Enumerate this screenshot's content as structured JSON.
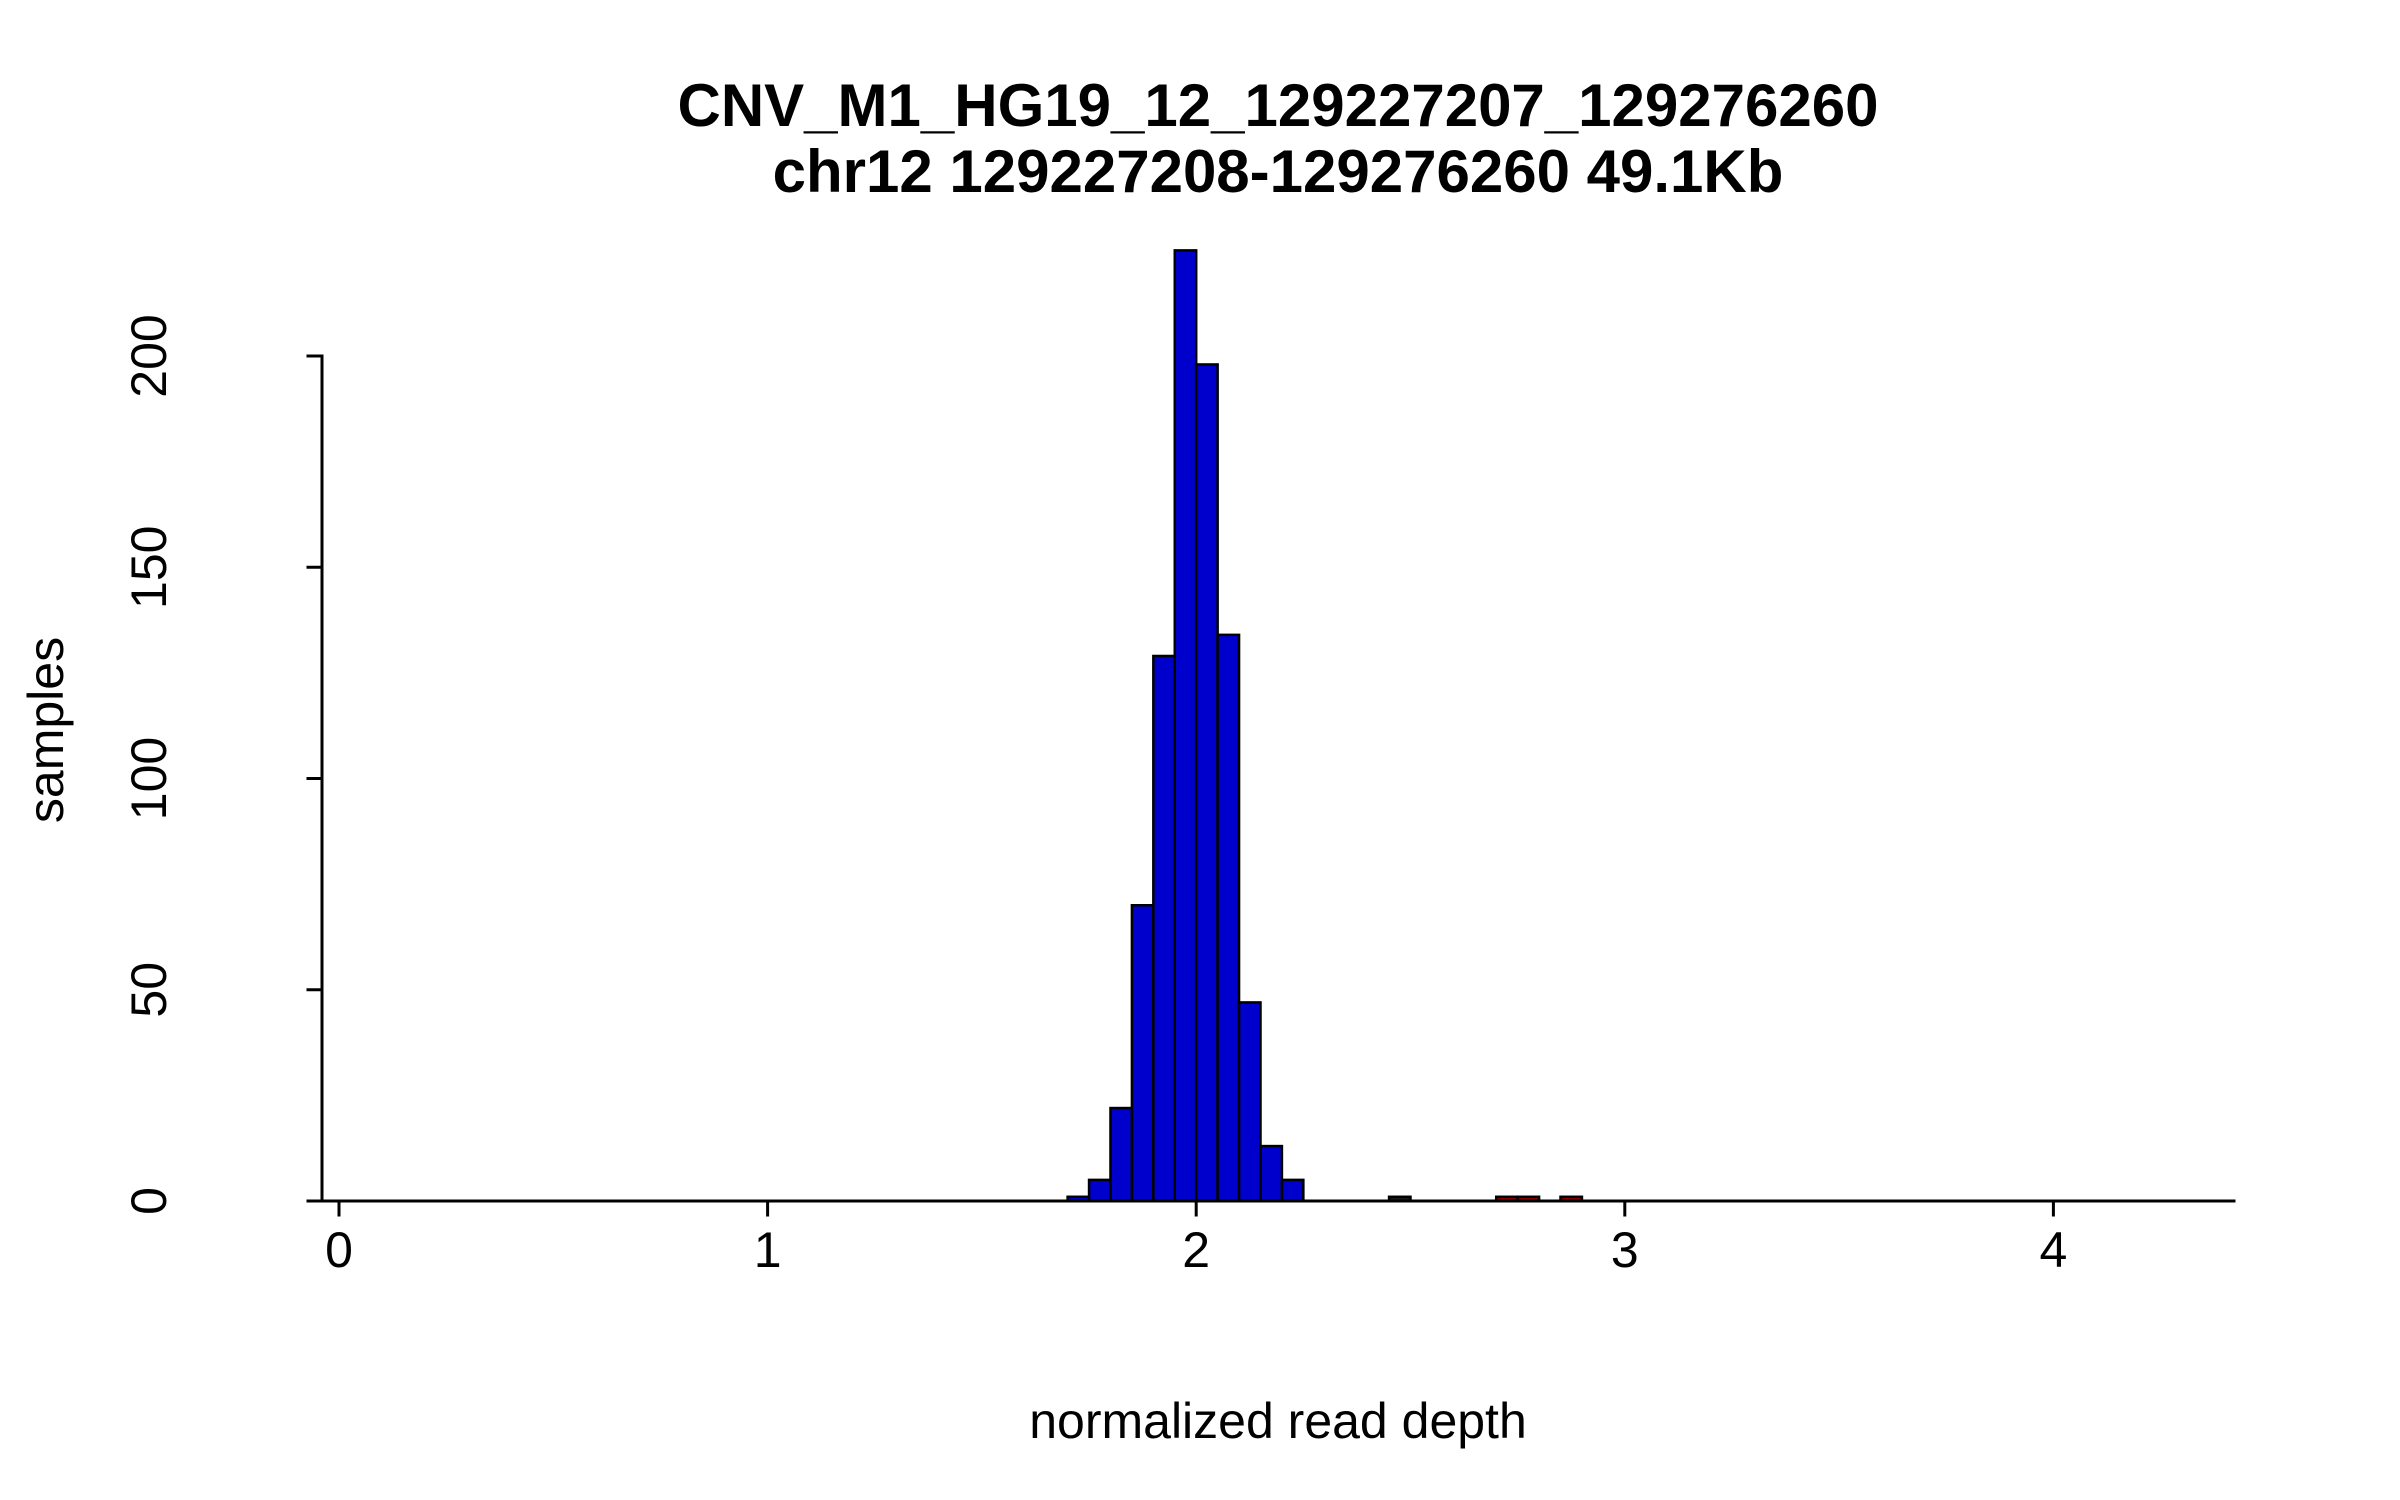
{
  "chart_data": {
    "type": "bar",
    "subtype": "histogram",
    "title": "CNV_M1_HG19_12_129227207_129276260",
    "subtitle": "chr12 129227208-129276260 49.1Kb",
    "xlabel": "normalized read depth",
    "ylabel": "samples",
    "xlim": [
      -0.05,
      4.42
    ],
    "ylim": [
      0,
      225
    ],
    "x_ticks": [
      0,
      1,
      2,
      3,
      4
    ],
    "y_ticks": [
      0,
      50,
      100,
      150,
      200
    ],
    "grid": "off",
    "legend": "none",
    "bin_width": 0.05,
    "bar_fill": "#0000CD",
    "bar_stroke": "#000000",
    "outlier_color": "#8B0000",
    "bars": [
      {
        "x0": 1.7,
        "count": 1
      },
      {
        "x0": 1.75,
        "count": 5
      },
      {
        "x0": 1.8,
        "count": 22
      },
      {
        "x0": 1.85,
        "count": 70
      },
      {
        "x0": 1.9,
        "count": 129
      },
      {
        "x0": 1.95,
        "count": 225
      },
      {
        "x0": 2.0,
        "count": 198
      },
      {
        "x0": 2.05,
        "count": 134
      },
      {
        "x0": 2.1,
        "count": 47
      },
      {
        "x0": 2.15,
        "count": 13
      },
      {
        "x0": 2.2,
        "count": 5
      },
      {
        "x0": 2.45,
        "count": 1,
        "color": "#1a1a1a"
      },
      {
        "x0": 2.7,
        "count": 1,
        "color": "#8B0000"
      },
      {
        "x0": 2.75,
        "count": 1,
        "color": "#8B0000"
      },
      {
        "x0": 2.85,
        "count": 1,
        "color": "#8B0000"
      }
    ]
  }
}
